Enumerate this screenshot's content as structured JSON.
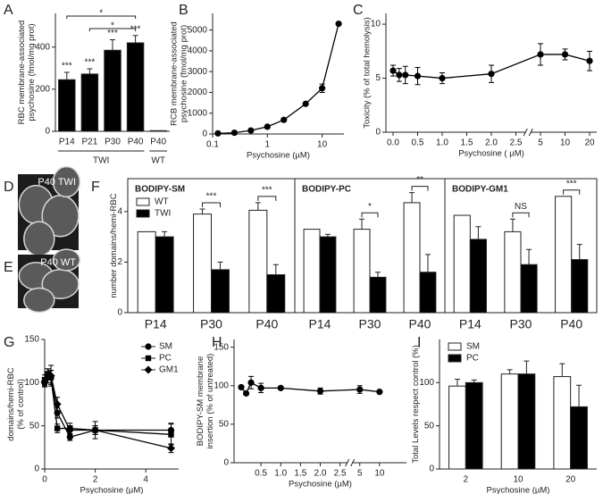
{
  "chart_data": [
    {
      "panel": "A",
      "type": "bar",
      "categories": [
        "P14",
        "P21",
        "P30",
        "P40",
        "P40"
      ],
      "values": [
        245,
        272,
        385,
        420,
        3
      ],
      "errors": [
        35,
        25,
        50,
        35,
        null
      ],
      "color": "#000000",
      "annotations": [
        "***",
        "***",
        "***",
        "***",
        null
      ],
      "brackets": [
        {
          "from": 0,
          "to": 3,
          "label": "*"
        },
        {
          "from": 1,
          "to": 3,
          "label": "*"
        }
      ],
      "groups": [
        {
          "label": "TWI",
          "count": 4
        },
        {
          "label": "WT",
          "count": 1
        }
      ],
      "ylabel": [
        "RBC membrane-associated",
        "psychosine (fmol/mg prot)"
      ],
      "ylim": [
        0,
        560
      ],
      "yticks": [
        0,
        200,
        400
      ]
    },
    {
      "panel": "B",
      "type": "line",
      "xscale": "log",
      "x": [
        0.125,
        0.25,
        0.5,
        1,
        2,
        5,
        10,
        20
      ],
      "values": [
        30,
        60,
        170,
        350,
        680,
        1450,
        2200,
        5300
      ],
      "errors": [
        null,
        null,
        null,
        null,
        null,
        null,
        200,
        null
      ],
      "color": "#000000",
      "marker": "circle",
      "xlabel": "Psychosine (µM)",
      "ylabel": [
        "RCB membrane-associated",
        "psychosine (fmol/mg prot)"
      ],
      "xlim": [
        0.1,
        25
      ],
      "xticks": [
        0.1,
        1,
        10
      ],
      "ylim": [
        0,
        5800
      ],
      "yticks": [
        0,
        1000,
        2000,
        3000,
        4000,
        5000
      ]
    },
    {
      "panel": "C",
      "type": "line",
      "xscale": "broken",
      "x": [
        0,
        0.125,
        0.25,
        0.5,
        1,
        2,
        5,
        10,
        20
      ],
      "values": [
        5.7,
        5.3,
        5.3,
        5.2,
        5.0,
        5.4,
        7.2,
        7.2,
        6.6
      ],
      "errors": [
        0.5,
        0.6,
        0.8,
        0.8,
        0.5,
        0.8,
        1.0,
        0.5,
        0.9
      ],
      "color": "#000000",
      "marker": "circle",
      "xlabel": "Psychosine ( µM)",
      "ylabel": [
        "Toxicity (% of total hemolysis)"
      ],
      "xlim": [
        0,
        20
      ],
      "xticks": [
        {
          "value": 0,
          "label": "0.0"
        },
        0.5,
        {
          "value": 1,
          "label": "1.0"
        },
        1.5,
        {
          "value": 2,
          "label": "2.0"
        },
        2.5,
        5,
        10,
        20
      ],
      "ylim": [
        0,
        11
      ],
      "yticks": [
        0,
        5,
        10
      ]
    },
    {
      "panel": "D",
      "type": "image",
      "label": "P40 TWI"
    },
    {
      "panel": "E",
      "type": "image",
      "label": "P40 WT"
    },
    {
      "panel": "F",
      "type": "bar",
      "title": "BODIPY-SM",
      "frame": true,
      "categories": [
        "P14",
        "P30",
        "P40"
      ],
      "series": [
        {
          "name": "WT",
          "color": "#ffffff",
          "values": [
            3.2,
            3.9,
            4.05
          ],
          "errors": [
            null,
            0.2,
            0.3
          ]
        },
        {
          "name": "TWI",
          "color": "#000000",
          "values": [
            3.0,
            1.7,
            1.5
          ],
          "errors": [
            0.2,
            0.3,
            0.4
          ]
        }
      ],
      "annotations": [
        null,
        "***",
        "***"
      ],
      "legend": "upper left",
      "ylabel": [
        "number domains/hemi-RBC"
      ],
      "ylim": [
        0,
        5.3
      ],
      "yticks": [
        0,
        2,
        4
      ]
    },
    {
      "type": "bar",
      "title": "BODIPY-PC",
      "frame": true,
      "categories": [
        "P14",
        "P30",
        "P40"
      ],
      "series": [
        {
          "color": "#ffffff",
          "values": [
            3.3,
            3.3,
            4.35
          ],
          "errors": [
            null,
            0.4,
            0.4
          ]
        },
        {
          "color": "#000000",
          "values": [
            3.0,
            1.4,
            1.6
          ],
          "errors": [
            0.1,
            0.2,
            0.7
          ]
        }
      ],
      "annotations": [
        null,
        "*",
        "**"
      ],
      "ylim": [
        0,
        5.3
      ]
    },
    {
      "type": "bar",
      "title": "BODIPY-GM1",
      "frame": true,
      "categories": [
        "P14",
        "P30",
        "P40"
      ],
      "series": [
        {
          "color": "#ffffff",
          "values": [
            3.85,
            3.2,
            4.6
          ],
          "errors": [
            null,
            0.5,
            null
          ]
        },
        {
          "color": "#000000",
          "values": [
            2.9,
            1.9,
            2.1
          ],
          "errors": [
            0.5,
            0.6,
            0.6
          ]
        }
      ],
      "annotations": [
        null,
        "NS",
        "***"
      ],
      "ylim": [
        0,
        5.3
      ]
    },
    {
      "panel": "G",
      "type": "line",
      "x": [
        0,
        0.125,
        0.25,
        0.5,
        1,
        2,
        5
      ],
      "series": [
        {
          "name": "SM",
          "marker": "circle",
          "color": "#000000",
          "values": [
            100,
            108,
            106,
            65,
            37,
            45,
            45
          ],
          "errors": [
            5,
            8,
            8,
            6,
            4,
            5,
            8
          ]
        },
        {
          "name": "PC",
          "marker": "square",
          "color": "#000000",
          "values": [
            103,
            110,
            106,
            47,
            47,
            45,
            40
          ],
          "errors": [
            6,
            6,
            8,
            5,
            6,
            10,
            12
          ]
        },
        {
          "name": "GM1",
          "marker": "diamond",
          "color": "#000000",
          "values": [
            101,
            108,
            108,
            75,
            45,
            45,
            24
          ],
          "errors": [
            5,
            5,
            12,
            8,
            5,
            5,
            5
          ]
        }
      ],
      "legend": "upper right",
      "xlabel": "Psychosine (µM)",
      "ylabel": [
        "domains/hemi-RBC",
        "(% of control)"
      ],
      "xlim": [
        0,
        5.3
      ],
      "xticks": [
        0,
        2,
        4
      ],
      "ylim": [
        0,
        150
      ],
      "yticks": [
        0,
        50,
        100,
        150
      ]
    },
    {
      "panel": "H",
      "type": "line",
      "xscale": "broken",
      "x": [
        0,
        0.125,
        0.25,
        0.5,
        1,
        2,
        5,
        10
      ],
      "values": [
        98,
        90,
        104,
        97,
        97,
        93,
        95,
        92
      ],
      "errors": [
        null,
        null,
        8,
        6,
        null,
        4,
        5,
        null
      ],
      "color": "#000000",
      "marker": "circle",
      "xlabel": "Psychosine (µM)",
      "ylabel": [
        "BODIPY-SM membrane",
        "insertion  (% of untreated)"
      ],
      "xlim": [
        0,
        11
      ],
      "xticks": [
        0.5,
        {
          "value": 1,
          "label": "1.0"
        },
        1.5,
        {
          "value": 2,
          "label": "2.0"
        },
        2.5,
        5,
        10
      ],
      "ylim": [
        0,
        160
      ],
      "yticks": [
        0,
        50,
        100,
        150
      ]
    },
    {
      "panel": "I",
      "type": "bar",
      "categories": [
        "2",
        "10",
        "20"
      ],
      "series": [
        {
          "name": "SM",
          "color": "#ffffff",
          "values": [
            96,
            110,
            107
          ],
          "errors": [
            8,
            5,
            15
          ]
        },
        {
          "name": "PC",
          "color": "#000000",
          "values": [
            100,
            110,
            72
          ],
          "errors": [
            3,
            15,
            25
          ]
        }
      ],
      "legend": "upper left",
      "xlabel": "Psychosine (µM)",
      "ylabel": [
        "Total Levels respect control (%)"
      ],
      "ylim": [
        0,
        150
      ],
      "yticks": [
        0,
        50,
        100
      ]
    }
  ]
}
